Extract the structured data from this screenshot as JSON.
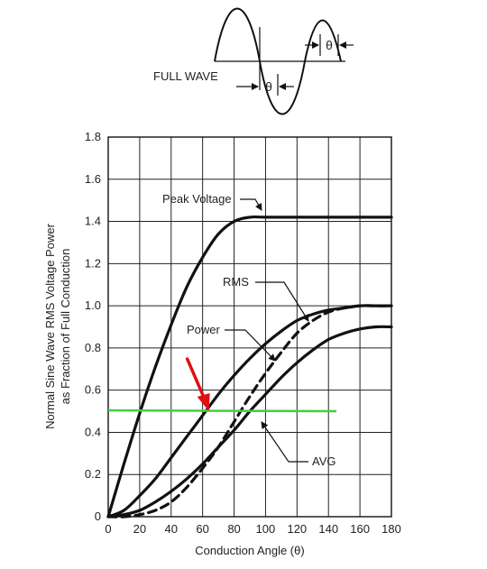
{
  "chart_data": {
    "type": "line",
    "xlabel": "Conduction Angle (θ)",
    "ylabel_line1": "Normal Sine Wave RMS Voltage Power",
    "ylabel_line2": "as Fraction of Full Conduction",
    "xlim": [
      0,
      180
    ],
    "ylim": [
      0,
      1.8
    ],
    "x_ticks": [
      "0",
      "20",
      "40",
      "60",
      "80",
      "100",
      "120",
      "140",
      "160",
      "180"
    ],
    "y_ticks": [
      "0",
      "0.2",
      "0.4",
      "0.6",
      "0.8",
      "1.0",
      "1.2",
      "1.4",
      "1.6",
      "1.8"
    ],
    "grid": true,
    "series": [
      {
        "name": "Peak Voltage",
        "style": "solid",
        "x": [
          0,
          10,
          20,
          30,
          40,
          50,
          60,
          70,
          80,
          90,
          100,
          120,
          140,
          160,
          180
        ],
        "y": [
          0,
          0.25,
          0.49,
          0.71,
          0.91,
          1.09,
          1.23,
          1.34,
          1.4,
          1.42,
          1.42,
          1.42,
          1.42,
          1.42,
          1.42
        ]
      },
      {
        "name": "RMS",
        "style": "solid",
        "x": [
          0,
          10,
          20,
          30,
          40,
          50,
          60,
          70,
          80,
          90,
          100,
          110,
          120,
          130,
          140,
          150,
          160,
          170,
          180
        ],
        "y": [
          0,
          0.03,
          0.1,
          0.18,
          0.28,
          0.38,
          0.48,
          0.58,
          0.67,
          0.75,
          0.82,
          0.88,
          0.93,
          0.96,
          0.98,
          0.99,
          1.0,
          1.0,
          1.0
        ]
      },
      {
        "name": "Power",
        "style": "dashed",
        "x": [
          0,
          10,
          20,
          30,
          40,
          50,
          60,
          70,
          80,
          90,
          100,
          110,
          120,
          130,
          140,
          150,
          160,
          170,
          180
        ],
        "y": [
          0,
          0.0,
          0.01,
          0.03,
          0.07,
          0.14,
          0.23,
          0.33,
          0.45,
          0.57,
          0.68,
          0.78,
          0.87,
          0.93,
          0.97,
          0.99,
          1.0,
          1.0,
          1.0
        ]
      },
      {
        "name": "AVG",
        "style": "solid",
        "x": [
          0,
          10,
          20,
          30,
          40,
          50,
          60,
          70,
          80,
          90,
          100,
          110,
          120,
          130,
          140,
          150,
          160,
          170,
          180
        ],
        "y": [
          0,
          0.01,
          0.03,
          0.07,
          0.12,
          0.18,
          0.25,
          0.33,
          0.41,
          0.5,
          0.58,
          0.66,
          0.73,
          0.79,
          0.84,
          0.87,
          0.89,
          0.9,
          0.9
        ]
      }
    ],
    "reference_line": {
      "color": "#3fd13f",
      "x": [
        0,
        145
      ],
      "y": [
        0.5,
        0.5
      ]
    },
    "marker_arrow": {
      "color": "#e01010",
      "at_x": 64,
      "at_y": 0.5
    },
    "inset": {
      "label": "FULL WAVE",
      "symbol": "θ"
    }
  }
}
